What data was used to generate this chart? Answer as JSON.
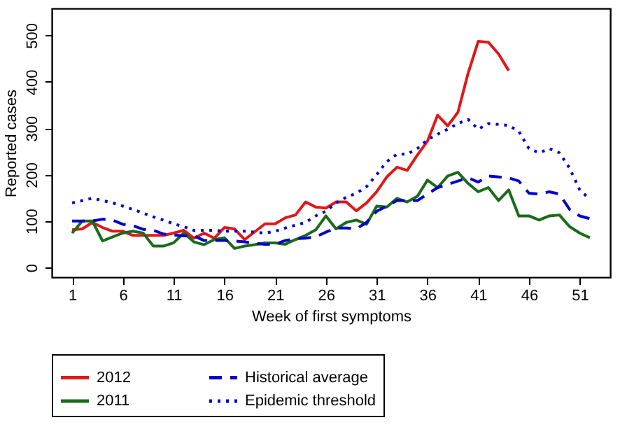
{
  "chart_data": {
    "type": "line",
    "xlabel": "Week of first symptoms",
    "ylabel": "Reported cases",
    "x": [
      1,
      2,
      3,
      4,
      5,
      6,
      7,
      8,
      9,
      10,
      11,
      12,
      13,
      14,
      15,
      16,
      17,
      18,
      19,
      20,
      21,
      22,
      23,
      24,
      25,
      26,
      27,
      28,
      29,
      30,
      31,
      32,
      33,
      34,
      35,
      36,
      37,
      38,
      39,
      40,
      41,
      42,
      43,
      44,
      45,
      46,
      47,
      48,
      49,
      50,
      51,
      52
    ],
    "series": [
      {
        "name": "2012",
        "color": "#e01818",
        "line_style": "solid",
        "values": [
          81,
          83,
          97,
          86,
          78,
          78,
          69,
          69,
          69,
          69,
          74,
          80,
          63,
          74,
          63,
          86,
          83,
          60,
          77,
          94,
          94,
          107,
          113,
          141,
          130,
          128,
          141,
          141,
          122,
          139,
          163,
          195,
          216,
          209,
          242,
          272,
          328,
          305,
          334,
          418,
          487,
          485,
          460,
          424,
          null,
          null,
          null,
          null,
          null,
          null,
          null,
          null
        ]
      },
      {
        "name": "2011",
        "color": "#1a6b1a",
        "line_style": "solid",
        "values": [
          74,
          100,
          100,
          57,
          66,
          74,
          78,
          74,
          46,
          46,
          53,
          74,
          55,
          49,
          60,
          64,
          41,
          46,
          49,
          53,
          53,
          50,
          60,
          69,
          81,
          111,
          83,
          97,
          102,
          93,
          132,
          130,
          149,
          141,
          153,
          188,
          172,
          197,
          205,
          181,
          163,
          172,
          144,
          167,
          111,
          111,
          102,
          111,
          113,
          88,
          74,
          64
        ]
      },
      {
        "name": "Historical average",
        "color": "#0000cc",
        "line_style": "dashed",
        "values": [
          100,
          100,
          100,
          104,
          102,
          93,
          90,
          82,
          80,
          72,
          70,
          68,
          68,
          58,
          58,
          58,
          57,
          55,
          52,
          50,
          50,
          58,
          62,
          63,
          66,
          76,
          85,
          85,
          83,
          97,
          121,
          132,
          144,
          144,
          144,
          158,
          172,
          179,
          186,
          193,
          184,
          197,
          195,
          193,
          186,
          160,
          158,
          163,
          158,
          125,
          111,
          105
        ]
      },
      {
        "name": "Epidemic threshold",
        "color": "#0000cc",
        "line_style": "dotted",
        "values": [
          139,
          144,
          149,
          144,
          139,
          132,
          125,
          117,
          109,
          102,
          94,
          88,
          80,
          80,
          80,
          78,
          78,
          78,
          76,
          74,
          78,
          85,
          91,
          97,
          111,
          121,
          139,
          151,
          160,
          174,
          200,
          228,
          244,
          244,
          256,
          275,
          287,
          298,
          310,
          319,
          298,
          310,
          308,
          306,
          293,
          256,
          247,
          256,
          247,
          214,
          167,
          147
        ]
      }
    ],
    "xlim": [
      -1,
      54
    ],
    "ylim": [
      -21,
      558
    ],
    "xticks": [
      1,
      6,
      11,
      16,
      21,
      26,
      31,
      36,
      41,
      46,
      51
    ],
    "yticks": [
      0,
      100,
      200,
      300,
      400,
      500
    ],
    "grid": false,
    "legend": "bottom",
    "marker": "none"
  }
}
